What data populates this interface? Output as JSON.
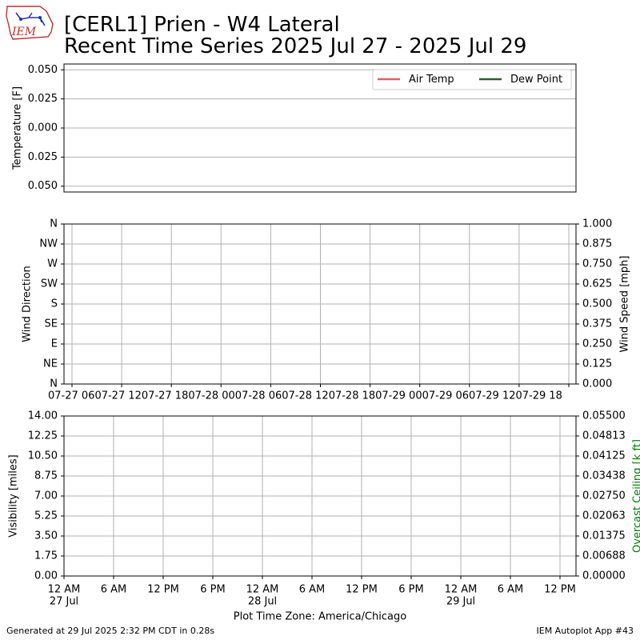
{
  "header": {
    "logo_text": "IEM",
    "title_line1": "[CERL1] Prien - W4 Lateral",
    "title_line2": "Recent Time Series 2025 Jul 27 - 2025 Jul 29"
  },
  "footer": {
    "generated": "Generated at 29 Jul 2025 2:32 PM CDT in 0.28s",
    "app": "IEM Autoplot App #43"
  },
  "colors": {
    "air_temp": "#e06060",
    "dew_point": "#2e5e2e",
    "ceiling_axis": "#008000",
    "grid": "#b0b0b0"
  },
  "chart_data": [
    {
      "type": "line",
      "ylabel": "Temperature [F]",
      "ylim": [
        -0.055,
        0.055
      ],
      "yticks": [
        "0.050",
        "0.025",
        "0.000",
        "0.025",
        "0.050"
      ],
      "ytick_values": [
        0.05,
        0.025,
        0,
        -0.025,
        -0.05
      ],
      "grid": "horizontal",
      "legend_position": "top-right",
      "series": [
        {
          "name": "Air Temp",
          "values": []
        },
        {
          "name": "Dew Point",
          "values": []
        }
      ]
    },
    {
      "type": "scatter",
      "ylabel": "Wind Direction",
      "yticks": [
        "N",
        "NE",
        "E",
        "SE",
        "S",
        "SW",
        "W",
        "NW",
        "N"
      ],
      "ylabel_right": "Wind Speed [mph]",
      "ylim_right": [
        0,
        1
      ],
      "yticks_right": [
        "0.000",
        "0.125",
        "0.250",
        "0.375",
        "0.500",
        "0.625",
        "0.750",
        "0.875",
        "1.000"
      ],
      "xticks": [
        "07-27 06",
        "07-27 12",
        "07-27 18",
        "07-28 00",
        "07-28 06",
        "07-28 12",
        "07-28 18",
        "07-29 00",
        "07-29 06",
        "07-29 12",
        "07-29 18"
      ],
      "xtick_text": "07-27 0607-27 1207-27 1807-28 0007-28 0607-28 1207-28 1807-29 0007-29 0607-29 1207-29 18",
      "grid": "both",
      "series": []
    },
    {
      "type": "line",
      "ylabel": "Visibility [miles]",
      "ylim": [
        0,
        14
      ],
      "yticks": [
        "0.00",
        "1.75",
        "3.50",
        "5.25",
        "7.00",
        "8.75",
        "10.50",
        "12.25",
        "14.00"
      ],
      "ylabel_right": "Overcast Ceiling [k ft]",
      "ylim_right": [
        0,
        0.055
      ],
      "yticks_right": [
        "0.00000",
        "0.00688",
        "0.01375",
        "0.02063",
        "0.02750",
        "0.03438",
        "0.04125",
        "0.04813",
        "0.05500"
      ],
      "xticks": [
        "12 AM",
        "6 AM",
        "12 PM",
        "6 PM",
        "12 AM",
        "6 AM",
        "12 PM",
        "6 PM",
        "12 AM",
        "6 AM",
        "12 PM"
      ],
      "xtick_dates": [
        "27 Jul",
        "28 Jul",
        "29 Jul"
      ],
      "xlabel": "Plot Time Zone: America/Chicago",
      "grid": "both",
      "series": []
    }
  ]
}
